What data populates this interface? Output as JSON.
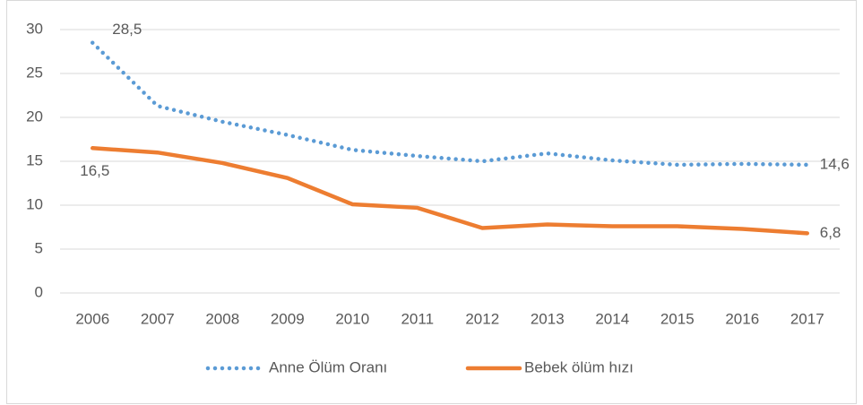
{
  "chart_data": {
    "type": "line",
    "categories": [
      "2006",
      "2007",
      "2008",
      "2009",
      "2010",
      "2011",
      "2012",
      "2013",
      "2014",
      "2015",
      "2016",
      "2017"
    ],
    "series": [
      {
        "name": "Anne Ölüm Oranı",
        "color": "#5b9bd5",
        "style": "dotted",
        "values": [
          28.5,
          21.3,
          19.5,
          18.0,
          16.3,
          15.6,
          15.0,
          15.9,
          15.1,
          14.6,
          14.7,
          14.6
        ],
        "value_labels": [
          "28,5",
          null,
          null,
          null,
          null,
          null,
          null,
          null,
          null,
          null,
          null,
          "14,6"
        ]
      },
      {
        "name": "Bebek ölüm hızı",
        "color": "#ed7d31",
        "style": "solid",
        "values": [
          16.5,
          16.0,
          14.8,
          13.1,
          10.1,
          9.7,
          7.4,
          7.8,
          7.6,
          7.6,
          7.3,
          6.8
        ],
        "value_labels": [
          "16,5",
          null,
          null,
          null,
          null,
          null,
          null,
          null,
          null,
          null,
          null,
          "6,8"
        ]
      }
    ],
    "ylim": [
      0,
      30
    ],
    "yticks": [
      0,
      5,
      10,
      15,
      20,
      25,
      30
    ],
    "grid": true,
    "legend": "bottom"
  }
}
